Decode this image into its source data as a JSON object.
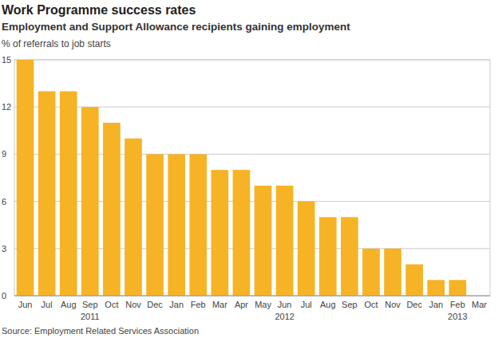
{
  "chart_data": {
    "type": "bar",
    "title": "Work Programme success rates",
    "subtitle": "Employment and Support Allowance recipients gaining employment",
    "y_label": "% of referrals to job starts",
    "source": "Source: Employment Related Services Association",
    "categories": [
      "Jun",
      "Jul",
      "Aug",
      "Sep",
      "Oct",
      "Nov",
      "Dec",
      "Jan",
      "Feb",
      "Mar",
      "Apr",
      "May",
      "Jun",
      "Jul",
      "Aug",
      "Sep",
      "Oct",
      "Nov",
      "Dec",
      "Jan",
      "Feb",
      "Mar"
    ],
    "year_labels": [
      null,
      null,
      null,
      "2011",
      null,
      null,
      null,
      null,
      null,
      null,
      null,
      null,
      "2012",
      null,
      null,
      null,
      null,
      null,
      null,
      null,
      "2013",
      null
    ],
    "values": [
      15,
      13,
      13,
      12,
      11,
      10,
      9,
      9,
      9,
      8,
      8,
      7,
      7,
      6,
      5,
      5,
      3,
      3,
      2,
      1,
      1,
      0
    ],
    "color": "#f6b325",
    "ylim": [
      0,
      15
    ],
    "yticks": [
      0,
      3,
      6,
      9,
      12,
      15
    ],
    "grid": true
  }
}
